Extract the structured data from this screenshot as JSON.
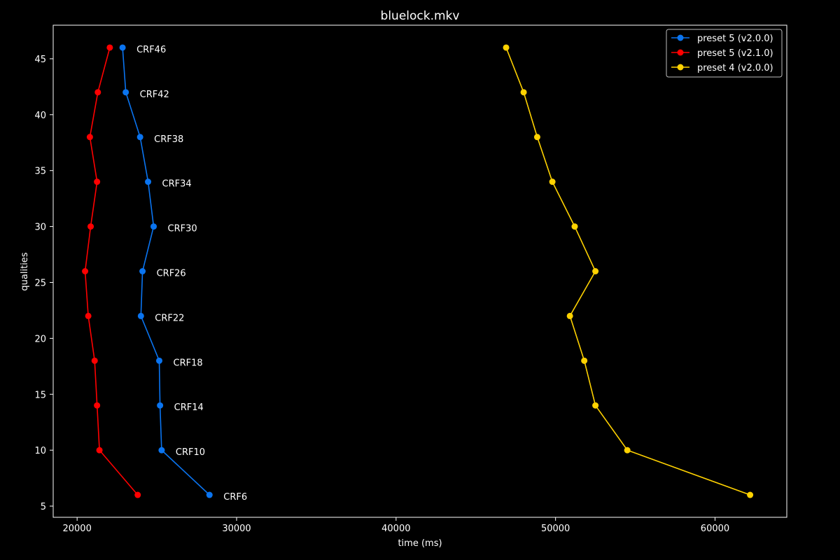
{
  "chart_data": {
    "type": "line",
    "title": "bluelock.mkv",
    "xlabel": "time (ms)",
    "ylabel": "qualities",
    "xlim": [
      18500,
      64500
    ],
    "ylim": [
      4,
      48
    ],
    "xticks": [
      20000,
      30000,
      40000,
      50000,
      60000
    ],
    "yticks": [
      5,
      10,
      15,
      20,
      25,
      30,
      35,
      40,
      45
    ],
    "grid": false,
    "legend_position": "top-right",
    "point_labels": [
      "CRF6",
      "CRF10",
      "CRF14",
      "CRF18",
      "CRF22",
      "CRF26",
      "CRF30",
      "CRF34",
      "CRF38",
      "CRF42",
      "CRF46"
    ],
    "point_labels_series": 0,
    "series": [
      {
        "name": "preset 5 (v2.0.0)",
        "color": "#0a74f0",
        "x": [
          28300,
          25300,
          25200,
          25150,
          24000,
          24100,
          24800,
          24450,
          23950,
          23050,
          22850
        ],
        "y": [
          6,
          10,
          14,
          18,
          22,
          26,
          30,
          34,
          38,
          42,
          46
        ]
      },
      {
        "name": "preset 5 (v2.1.0)",
        "color": "#ff0000",
        "x": [
          23800,
          21400,
          21250,
          21100,
          20700,
          20500,
          20850,
          21250,
          20800,
          21300,
          22050
        ],
        "y": [
          6,
          10,
          14,
          18,
          22,
          26,
          30,
          34,
          38,
          42,
          46
        ]
      },
      {
        "name": "preset 4 (v2.0.0)",
        "color": "#ffd200",
        "x": [
          62200,
          54500,
          52500,
          51800,
          50900,
          52500,
          51200,
          49800,
          48850,
          48000,
          46900
        ],
        "y": [
          6,
          10,
          14,
          18,
          22,
          26,
          30,
          34,
          38,
          42,
          46
        ]
      }
    ]
  }
}
